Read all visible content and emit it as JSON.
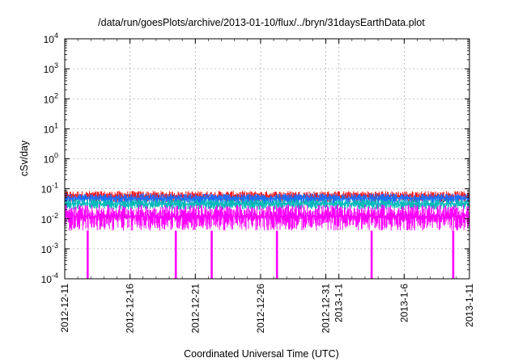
{
  "chart_data": {
    "type": "line",
    "title": "/data/run/goesPlots/archive/2013-01-10/flux/../bryn/31daysEarthData.plot",
    "xlabel": "Coordinated Universal Time (UTC)",
    "ylabel": "cSv/day",
    "y_scale": "log",
    "ylim": [
      0.0001,
      10000
    ],
    "xlim": [
      "2012-12-11",
      "2013-01-11"
    ],
    "grid": true,
    "y_ticks": [
      {
        "value": 0.0001,
        "base": "10",
        "exp": "-4"
      },
      {
        "value": 0.001,
        "base": "10",
        "exp": "-3"
      },
      {
        "value": 0.01,
        "base": "10",
        "exp": "-2"
      },
      {
        "value": 0.1,
        "base": "10",
        "exp": "-1"
      },
      {
        "value": 1,
        "base": "10",
        "exp": "0"
      },
      {
        "value": 10,
        "base": "10",
        "exp": "1"
      },
      {
        "value": 100,
        "base": "10",
        "exp": "2"
      },
      {
        "value": 1000,
        "base": "10",
        "exp": "3"
      },
      {
        "value": 10000,
        "base": "10",
        "exp": "4"
      }
    ],
    "x_ticks": [
      {
        "date": "2012-12-11",
        "label": "2012-12-11"
      },
      {
        "date": "2012-12-16",
        "label": "2012-12-16"
      },
      {
        "date": "2012-12-21",
        "label": "2012-12-21"
      },
      {
        "date": "2012-12-26",
        "label": "2012-12-26"
      },
      {
        "date": "2012-12-31",
        "label": "2012-12-31"
      },
      {
        "date": "2013-01-01",
        "label": "2013-1-1"
      },
      {
        "date": "2013-01-06",
        "label": "2013-1-6"
      },
      {
        "date": "2013-01-11",
        "label": "2013-1-11"
      }
    ],
    "series": [
      {
        "color": "#ff1a1a",
        "band": [
          0.035,
          0.085
        ]
      },
      {
        "color": "#1a6fff",
        "band": [
          0.03,
          0.07
        ]
      },
      {
        "color": "#00b9b9",
        "band": [
          0.02,
          0.045
        ]
      },
      {
        "color": "#ff00ff",
        "band": [
          0.004,
          0.03
        ],
        "dropouts": [
          "2012-12-12T18:00",
          "2012-12-19T12:00",
          "2012-12-22T06:00",
          "2012-12-27T06:00",
          "2013-01-03T12:00",
          "2013-01-09T18:00"
        ],
        "dropout_min": 0.0001
      }
    ]
  }
}
